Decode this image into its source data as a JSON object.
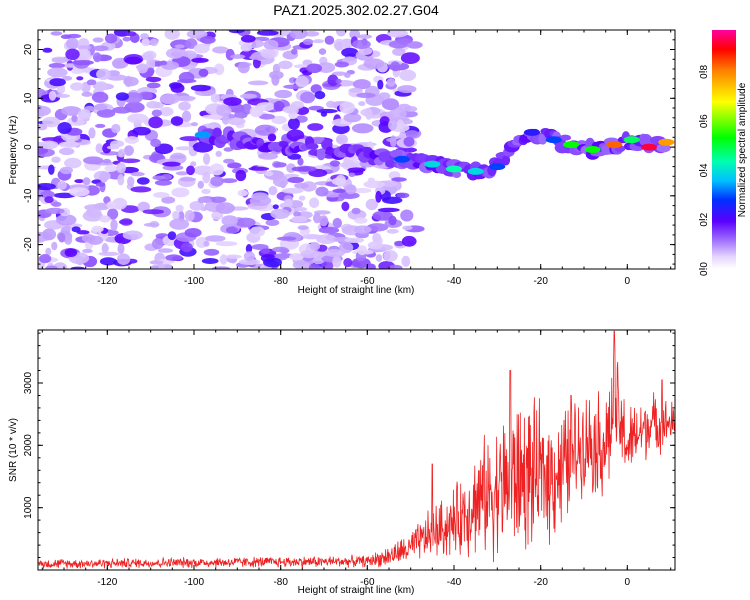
{
  "title": "PAZ1.2025.302.02.27.G04",
  "chart_data": [
    {
      "type": "heatmap",
      "title": "PAZ1.2025.302.02.27.G04",
      "xlabel": "Height of straight line (km)",
      "ylabel": "Frequency (Hz)",
      "xlim": [
        -136,
        11
      ],
      "ylim": [
        -25,
        24
      ],
      "x_ticks": [
        -120,
        -100,
        -80,
        -60,
        -40,
        -20,
        0
      ],
      "y_ticks": [
        -20,
        -10,
        0,
        10,
        20
      ],
      "colorbar": {
        "label": "Normalized spectral amplitude",
        "range": [
          0,
          0.97
        ],
        "ticks": [
          0.0,
          0.2,
          0.4,
          0.6,
          0.8
        ]
      },
      "trace": [
        {
          "x": -98,
          "y": 2.5,
          "amp": 0.35
        },
        {
          "x": -52,
          "y": -2.5,
          "amp": 0.3
        },
        {
          "x": -45,
          "y": -3.5,
          "amp": 0.4
        },
        {
          "x": -40,
          "y": -4.5,
          "amp": 0.45
        },
        {
          "x": -35,
          "y": -5,
          "amp": 0.4
        },
        {
          "x": -30,
          "y": -4,
          "amp": 0.3
        },
        {
          "x": -22,
          "y": 3,
          "amp": 0.25
        },
        {
          "x": -17,
          "y": 1.5,
          "amp": 0.3
        },
        {
          "x": -13,
          "y": 0.5,
          "amp": 0.55
        },
        {
          "x": -8,
          "y": -0.5,
          "amp": 0.55
        },
        {
          "x": -3,
          "y": 0.5,
          "amp": 0.85
        },
        {
          "x": 1,
          "y": 1.5,
          "amp": 0.5
        },
        {
          "x": 5,
          "y": 0,
          "amp": 0.95
        },
        {
          "x": 9,
          "y": 1,
          "amp": 0.8
        }
      ]
    },
    {
      "type": "line",
      "xlabel": "Height of straight line (km)",
      "ylabel": "SNR (10 * v/v)",
      "xlim": [
        -136,
        11
      ],
      "ylim": [
        0,
        3850
      ],
      "x_ticks": [
        -120,
        -100,
        -80,
        -60,
        -40,
        -20,
        0
      ],
      "y_ticks": [
        1000,
        2000,
        3000
      ],
      "envelope": [
        {
          "x": -136,
          "base": 100,
          "amp": 90
        },
        {
          "x": -60,
          "base": 140,
          "amp": 110
        },
        {
          "x": -55,
          "base": 220,
          "amp": 200
        },
        {
          "x": -50,
          "base": 350,
          "amp": 300
        },
        {
          "x": -45,
          "base": 600,
          "amp": 500
        },
        {
          "x": -40,
          "base": 750,
          "amp": 650
        },
        {
          "x": -35,
          "base": 1100,
          "amp": 1000
        },
        {
          "x": -30,
          "base": 1300,
          "amp": 1250
        },
        {
          "x": -25,
          "base": 1500,
          "amp": 1500
        },
        {
          "x": -20,
          "base": 1500,
          "amp": 1300
        },
        {
          "x": -15,
          "base": 1600,
          "amp": 1200
        },
        {
          "x": -10,
          "base": 2100,
          "amp": 900
        },
        {
          "x": -5,
          "base": 2000,
          "amp": 1100
        },
        {
          "x": -3,
          "base": 2600,
          "amp": 1200
        },
        {
          "x": 0,
          "base": 2000,
          "amp": 700
        },
        {
          "x": 5,
          "base": 2350,
          "amp": 600
        },
        {
          "x": 11,
          "base": 2350,
          "amp": 400
        }
      ],
      "peaks": [
        {
          "x": -45,
          "y": 1700
        },
        {
          "x": -27,
          "y": 3200
        },
        {
          "x": -13,
          "y": 2800
        },
        {
          "x": -3,
          "y": 3830
        },
        {
          "x": 8,
          "y": 3050
        }
      ]
    }
  ]
}
